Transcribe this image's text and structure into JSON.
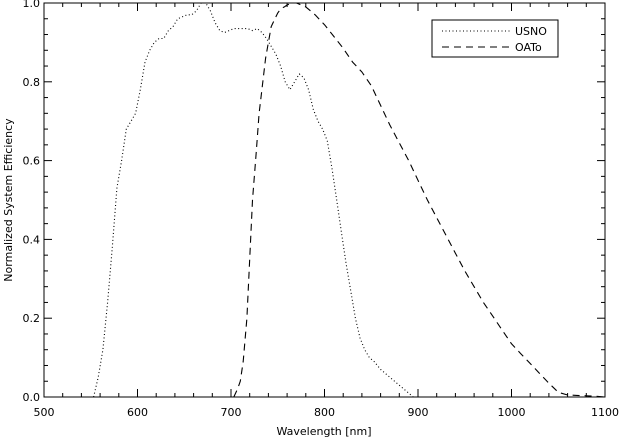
{
  "chart_data": {
    "type": "line",
    "title": "",
    "xlabel": "Wavelength [nm]",
    "ylabel": "Normalized System Efficiency",
    "xlim": [
      500,
      1100
    ],
    "ylim": [
      0.0,
      1.0
    ],
    "xticks": [
      500,
      600,
      700,
      800,
      900,
      1000,
      1100
    ],
    "yticks": [
      0.0,
      0.2,
      0.4,
      0.6,
      0.8,
      1.0
    ],
    "legend_position": "top-right",
    "grid": false,
    "series": [
      {
        "name": "USNO",
        "style": "dotted",
        "x": [
          553,
          558,
          563,
          568,
          573,
          578,
          583,
          588,
          593,
          598,
          603,
          608,
          613,
          618,
          623,
          628,
          633,
          638,
          643,
          648,
          653,
          658,
          663,
          668,
          673,
          678,
          683,
          688,
          693,
          698,
          703,
          708,
          713,
          718,
          723,
          728,
          733,
          738,
          743,
          748,
          753,
          758,
          763,
          768,
          773,
          778,
          783,
          788,
          793,
          798,
          803,
          808,
          813,
          818,
          823,
          828,
          833,
          838,
          843,
          848,
          853,
          860,
          870,
          880,
          890,
          895
        ],
        "y": [
          0.0,
          0.05,
          0.12,
          0.24,
          0.38,
          0.53,
          0.6,
          0.68,
          0.7,
          0.72,
          0.78,
          0.85,
          0.88,
          0.9,
          0.91,
          0.91,
          0.93,
          0.94,
          0.96,
          0.965,
          0.97,
          0.97,
          0.98,
          1.0,
          1.0,
          0.98,
          0.95,
          0.93,
          0.925,
          0.93,
          0.935,
          0.935,
          0.935,
          0.935,
          0.93,
          0.935,
          0.925,
          0.91,
          0.89,
          0.87,
          0.84,
          0.8,
          0.78,
          0.8,
          0.82,
          0.81,
          0.78,
          0.73,
          0.7,
          0.68,
          0.65,
          0.58,
          0.5,
          0.42,
          0.34,
          0.27,
          0.2,
          0.15,
          0.12,
          0.1,
          0.09,
          0.07,
          0.05,
          0.03,
          0.01,
          0.0
        ]
      },
      {
        "name": "OATo",
        "style": "dashed",
        "x": [
          703,
          707,
          710,
          713,
          717,
          720,
          723,
          727,
          730,
          733,
          737,
          740,
          743,
          747,
          750,
          753,
          757,
          760,
          765,
          770,
          775,
          780,
          785,
          790,
          800,
          810,
          820,
          830,
          840,
          850,
          860,
          870,
          880,
          890,
          900,
          910,
          920,
          930,
          940,
          950,
          960,
          970,
          980,
          990,
          1000,
          1010,
          1020,
          1030,
          1040,
          1050,
          1060,
          1070,
          1080,
          1090,
          1100
        ],
        "y": [
          0.0,
          0.02,
          0.04,
          0.09,
          0.2,
          0.35,
          0.5,
          0.62,
          0.72,
          0.78,
          0.86,
          0.9,
          0.94,
          0.96,
          0.975,
          0.985,
          0.99,
          0.995,
          1.0,
          1.0,
          0.995,
          0.99,
          0.98,
          0.97,
          0.945,
          0.915,
          0.885,
          0.85,
          0.825,
          0.79,
          0.74,
          0.69,
          0.645,
          0.6,
          0.55,
          0.5,
          0.455,
          0.41,
          0.365,
          0.32,
          0.28,
          0.24,
          0.205,
          0.17,
          0.135,
          0.11,
          0.085,
          0.06,
          0.035,
          0.012,
          0.005,
          0.004,
          0.003,
          0.002,
          0.0
        ]
      }
    ]
  }
}
